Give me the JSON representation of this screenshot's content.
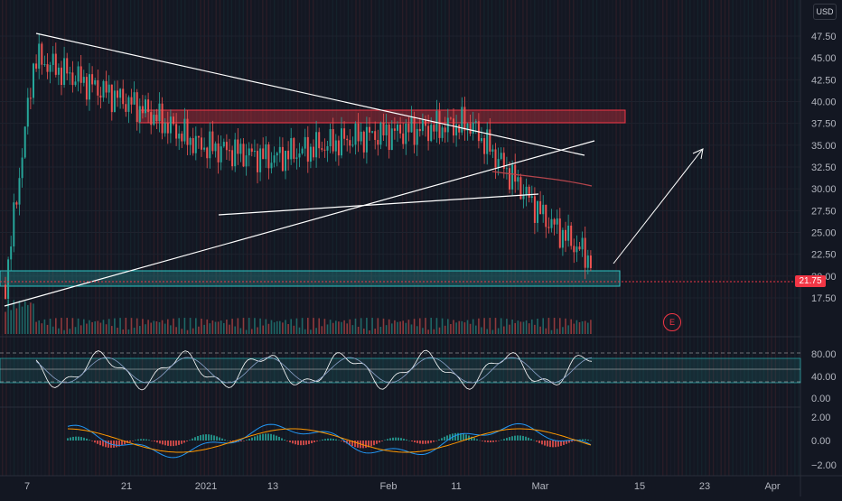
{
  "currency": "USD",
  "last_price": "21.75",
  "earnings_badge": "E",
  "colors": {
    "background": "#131722",
    "up": "#26a69a",
    "down": "#ef5350",
    "resistance_zone": "#f23645",
    "support_zone": "#2ec4c4",
    "moving_average": "#b5454c",
    "trendline": "#ffffff",
    "macd_line": "#2196f3",
    "signal_line": "#ff9800"
  },
  "price_axis": {
    "labels": [
      "47.50",
      "45.00",
      "42.50",
      "40.00",
      "37.50",
      "35.00",
      "32.50",
      "30.00",
      "27.50",
      "25.00",
      "22.50",
      "20.00",
      "17.50"
    ]
  },
  "stoch_axis": {
    "labels": [
      "80.00",
      "40.00",
      "0.00"
    ]
  },
  "macd_axis": {
    "labels": [
      "2.00",
      "0.00",
      "−2.00"
    ]
  },
  "time_axis": {
    "labels": [
      "7",
      "21",
      "2021",
      "13",
      "Feb",
      "11",
      "Mar",
      "15",
      "23",
      "Apr"
    ]
  },
  "chart_data": {
    "type": "candlestick",
    "price_range": [
      16.0,
      49.5
    ],
    "trend_markers": [
      {
        "date": "start",
        "price": 19.0
      },
      {
        "date": "7",
        "price": 45.0
      },
      {
        "date": "21",
        "price": 39.0
      },
      {
        "date": "2021",
        "price": 35.0
      },
      {
        "date": "13",
        "price": 33.5
      },
      {
        "date": "Feb",
        "price": 36.0
      },
      {
        "date": "11",
        "price": 37.5
      },
      {
        "date": "Mar",
        "price": 27.0
      },
      {
        "date": "last",
        "price": 21.75
      }
    ],
    "zones": [
      {
        "kind": "resistance",
        "low": 38.3,
        "high": 39.7
      },
      {
        "kind": "support",
        "low": 21.3,
        "high": 22.9
      }
    ]
  }
}
